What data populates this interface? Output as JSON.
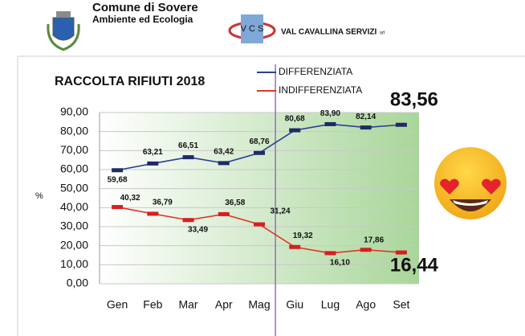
{
  "header": {
    "org": "Comune di Sovere",
    "department": "Ambiente ed Ecologia",
    "logo_letters": "V C S",
    "company": "VAL CAVALLINA SERVIZI",
    "company_suffix": "srl"
  },
  "chart_data": {
    "type": "line",
    "title": "RACCOLTA RIFIUTI 2018",
    "y_label": "%",
    "categories": [
      "Gen",
      "Feb",
      "Mar",
      "Apr",
      "Mag",
      "Giu",
      "Lug",
      "Ago",
      "Set"
    ],
    "series": [
      {
        "name": "DIFFERENZIATA",
        "color": "#2b3f9c",
        "values": [
          59.68,
          63.21,
          66.51,
          63.42,
          68.76,
          80.68,
          83.9,
          82.14,
          83.56
        ],
        "value_labels": [
          "59,68",
          "63,21",
          "66,51",
          "63,42",
          "68,76",
          "80,68",
          "83,90",
          "82,14",
          "83,56"
        ]
      },
      {
        "name": "INDIFFERENZIATA",
        "color": "#e5332a",
        "values": [
          40.32,
          36.79,
          33.49,
          36.58,
          31.24,
          19.32,
          16.1,
          17.86,
          16.44
        ],
        "value_labels": [
          "40,32",
          "36,79",
          "33,49",
          "36,58",
          "31,24",
          "19,32",
          "16,10",
          "17,86",
          "16,44"
        ]
      }
    ],
    "ylim": [
      0,
      90
    ],
    "yticks": [
      {
        "value": 0,
        "label": "0,00"
      },
      {
        "value": 10,
        "label": "10,00"
      },
      {
        "value": 20,
        "label": "20,00"
      },
      {
        "value": 30,
        "label": "30,00"
      },
      {
        "value": 40,
        "label": "40,00"
      },
      {
        "value": 50,
        "label": "50,00"
      },
      {
        "value": 60,
        "label": "60,00"
      },
      {
        "value": 70,
        "label": "70,00"
      },
      {
        "value": 80,
        "label": "80,00"
      },
      {
        "value": 90,
        "label": "90,00"
      }
    ],
    "grid": true,
    "legend": "top"
  }
}
